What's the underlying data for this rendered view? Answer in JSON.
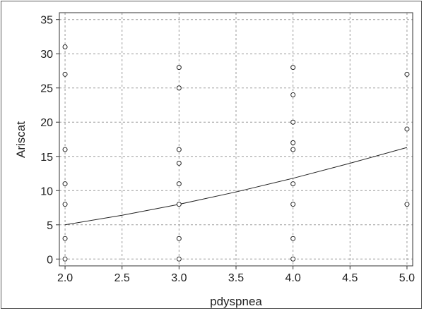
{
  "chart_data": {
    "type": "scatter",
    "title": "",
    "xlabel": "pdyspnea",
    "ylabel": "Ariscat",
    "xlim": [
      1.95,
      5.05
    ],
    "ylim": [
      -1,
      36
    ],
    "x_ticks": [
      "2.0",
      "2.5",
      "3.0",
      "3.5",
      "4.0",
      "4.5",
      "5.0"
    ],
    "y_ticks": [
      "0",
      "5",
      "10",
      "15",
      "20",
      "25",
      "30",
      "35"
    ],
    "grid": true,
    "points": [
      {
        "x": 2,
        "y": 0
      },
      {
        "x": 2,
        "y": 3
      },
      {
        "x": 2,
        "y": 8
      },
      {
        "x": 2,
        "y": 11
      },
      {
        "x": 2,
        "y": 16
      },
      {
        "x": 2,
        "y": 27
      },
      {
        "x": 2,
        "y": 31
      },
      {
        "x": 3,
        "y": 0
      },
      {
        "x": 3,
        "y": 3
      },
      {
        "x": 3,
        "y": 8
      },
      {
        "x": 3,
        "y": 11
      },
      {
        "x": 3,
        "y": 14
      },
      {
        "x": 3,
        "y": 16
      },
      {
        "x": 3,
        "y": 25
      },
      {
        "x": 3,
        "y": 28
      },
      {
        "x": 4,
        "y": 0
      },
      {
        "x": 4,
        "y": 3
      },
      {
        "x": 4,
        "y": 8
      },
      {
        "x": 4,
        "y": 11
      },
      {
        "x": 4,
        "y": 16
      },
      {
        "x": 4,
        "y": 17
      },
      {
        "x": 4,
        "y": 20
      },
      {
        "x": 4,
        "y": 24
      },
      {
        "x": 4,
        "y": 28
      },
      {
        "x": 5,
        "y": 8
      },
      {
        "x": 5,
        "y": 19
      },
      {
        "x": 5,
        "y": 27
      }
    ],
    "fit_curve": {
      "x": [
        2.0,
        2.5,
        3.0,
        3.5,
        4.0,
        4.5,
        5.0
      ],
      "y": [
        5.0,
        6.4,
        8.0,
        9.8,
        11.8,
        14.0,
        16.3
      ]
    }
  }
}
